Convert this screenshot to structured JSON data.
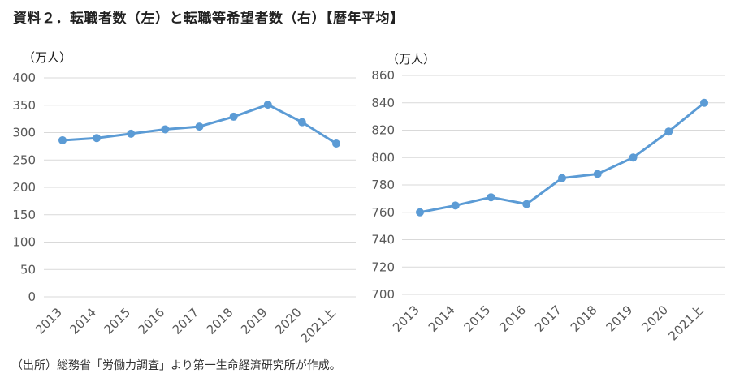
{
  "title": "資料２．転職者数（左）と転職等希望者数（右）【暦年平均】",
  "source": "（出所）総務省「労働力調査」より第一生命経済研究所が作成。",
  "colors": {
    "series": "#5b9bd5",
    "grid": "#d9d9d9",
    "tick": "#595959"
  },
  "chart_data": [
    {
      "type": "line",
      "title": "",
      "ylabel": "（万人）",
      "xlabel": "",
      "categories": [
        "2013",
        "2014",
        "2015",
        "2016",
        "2017",
        "2018",
        "2019",
        "2020",
        "2021上"
      ],
      "series": [
        {
          "values": [
            286,
            290,
            298,
            306,
            311,
            329,
            351,
            319,
            280
          ]
        }
      ],
      "ylim": [
        0,
        400
      ],
      "yticks": [
        0,
        50,
        100,
        150,
        200,
        250,
        300,
        350,
        400
      ],
      "grid": true,
      "legend": "none"
    },
    {
      "type": "line",
      "title": "",
      "ylabel": "（万人）",
      "xlabel": "",
      "categories": [
        "2013",
        "2014",
        "2015",
        "2016",
        "2017",
        "2018",
        "2019",
        "2020",
        "2021上"
      ],
      "series": [
        {
          "values": [
            760,
            765,
            771,
            766,
            785,
            788,
            800,
            819,
            840
          ]
        }
      ],
      "ylim": [
        700,
        860
      ],
      "yticks": [
        700,
        720,
        740,
        760,
        780,
        800,
        820,
        840,
        860
      ],
      "grid": true,
      "legend": "none"
    }
  ]
}
